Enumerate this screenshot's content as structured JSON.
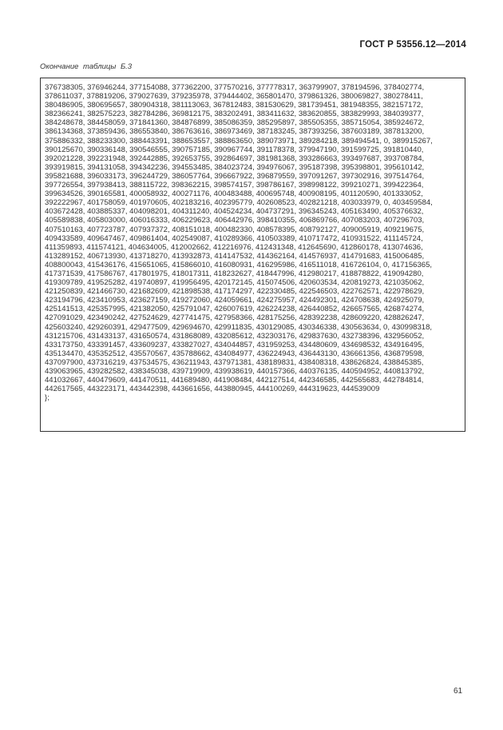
{
  "header": {
    "standard": "ГОСТ Р 53556.12—2014"
  },
  "caption": "Окончание  таблицы Б.3",
  "table_lines": [
    "376738305, 376946244, 377154088, 377362200, 377570216, 377778317, 363799907, 378194596, 378402774,",
    "378611037, 378819206, 379027639, 379235978, 379444402, 365801470, 379861326, 380069827, 380278411,",
    "380486905, 380695657, 380904318, 381113063, 367812483, 381530629, 381739451, 381948355, 382157172,",
    "382366241, 382575223, 382784286, 369812175, 383202491, 383411632, 383620855, 383829993, 384039377,",
    "384248678, 384458059, 371841360, 384876899, 385086359, 385295897, 385505355, 385715054, 385924672,",
    "386134368, 373859436, 386553840, 386763616, 386973469, 387183245, 387393256, 387603189, 387813200,",
    "375886332, 388233300, 388443391, 388653557, 388863650, 389073971, 389284218, 389494541, 0, 389915267,",
    "390125670, 390336148, 390546555, 390757185, 390967744, 391178378, 379947190, 391599725, 391810440,",
    "392021228, 392231948, 392442885, 392653755, 392864697, 381981368, 393286663, 393497687, 393708784,",
    "393919815, 394131058, 394342236, 394553485, 384023724, 394976067, 395187398, 395398801, 395610142,",
    "395821688, 396033173, 396244729, 386057764, 396667922, 396879559, 397091267, 397302916, 397514764,",
    "397726554, 397938413, 388115722, 398362215, 398574157, 398786167, 398998122, 399210271, 399422364,",
    "399634526, 390165581, 400058932, 400271176, 400483488, 400695748, 400908195, 401120590, 401333052,",
    "392222967, 401758059, 401970605, 402183216, 402395779, 402608523, 402821218, 403033979, 0, 403459584,",
    "403672428, 403885337, 404098201, 404311240, 404524234, 404737291, 396345243, 405163490, 405376632,",
    "405589838, 405803000, 406016333, 406229623, 406442976, 398410355, 406869766, 407083203, 407296703,",
    "407510163, 407723787, 407937372, 408151018, 400482330, 408578395, 408792127, 409005919, 409219675,",
    "409433589, 409647467, 409861404, 402549087, 410289366, 410503389, 410717472, 410931522, 411145724,",
    "411359893, 411574121, 404634005, 412002662, 412216976, 412431348, 412645690, 412860178, 413074636,",
    "413289152, 406713930, 413718270, 413932873, 414147532, 414362164, 414576937, 414791683, 415006485,",
    "408800043, 415436176, 415651065, 415866010, 416080931, 416295986, 416511018, 416726104, 0, 417156365,",
    "417371539, 417586767, 417801975, 418017311, 418232627, 418447996, 412980217, 418878822, 419094280,",
    "419309789, 419525282, 419740897, 419956495, 420172145, 415074506, 420603534, 420819273, 421035062,",
    "421250839, 421466730, 421682609, 421898538, 417174297, 422330485, 422546503, 422762571, 422978629,",
    "423194796, 423410953, 423627159, 419272060, 424059661, 424275957, 424492301, 424708638, 424925079,",
    "425141513, 425357995, 421382050, 425791047, 426007619, 426224238, 426440852, 426657565, 426874274,",
    "427091029, 423490242, 427524629, 427741475, 427958366, 428175256, 428392238, 428609220, 428826247,",
    "425603240, 429260391, 429477509, 429694670, 429911835, 430129085, 430346338, 430563634, 0, 430998318,",
    "431215706, 431433137, 431650574, 431868089, 432085612, 432303176, 429837630, 432738396, 432956052,",
    "433173750, 433391457, 433609237, 433827027, 434044857, 431959253, 434480609, 434698532, 434916495,",
    "435134470, 435352512, 435570567, 435788662, 434084977, 436224943, 436443130, 436661356, 436879598,",
    "437097900, 437316219, 437534575, 436211943, 437971381, 438189831, 438408318, 438626824, 438845385,",
    "439063965, 439282582, 438345038, 439719909, 439938619, 440157366, 440376135, 440594952, 440813792,",
    "441032667, 440479609, 441470511, 441689480, 441908484, 442127514, 442346585, 442565683, 442784814,",
    "442617565, 443223171, 443442398, 443661656, 443880945, 444100269, 444319623, 444539009",
    "};"
  ],
  "page_number": "61"
}
